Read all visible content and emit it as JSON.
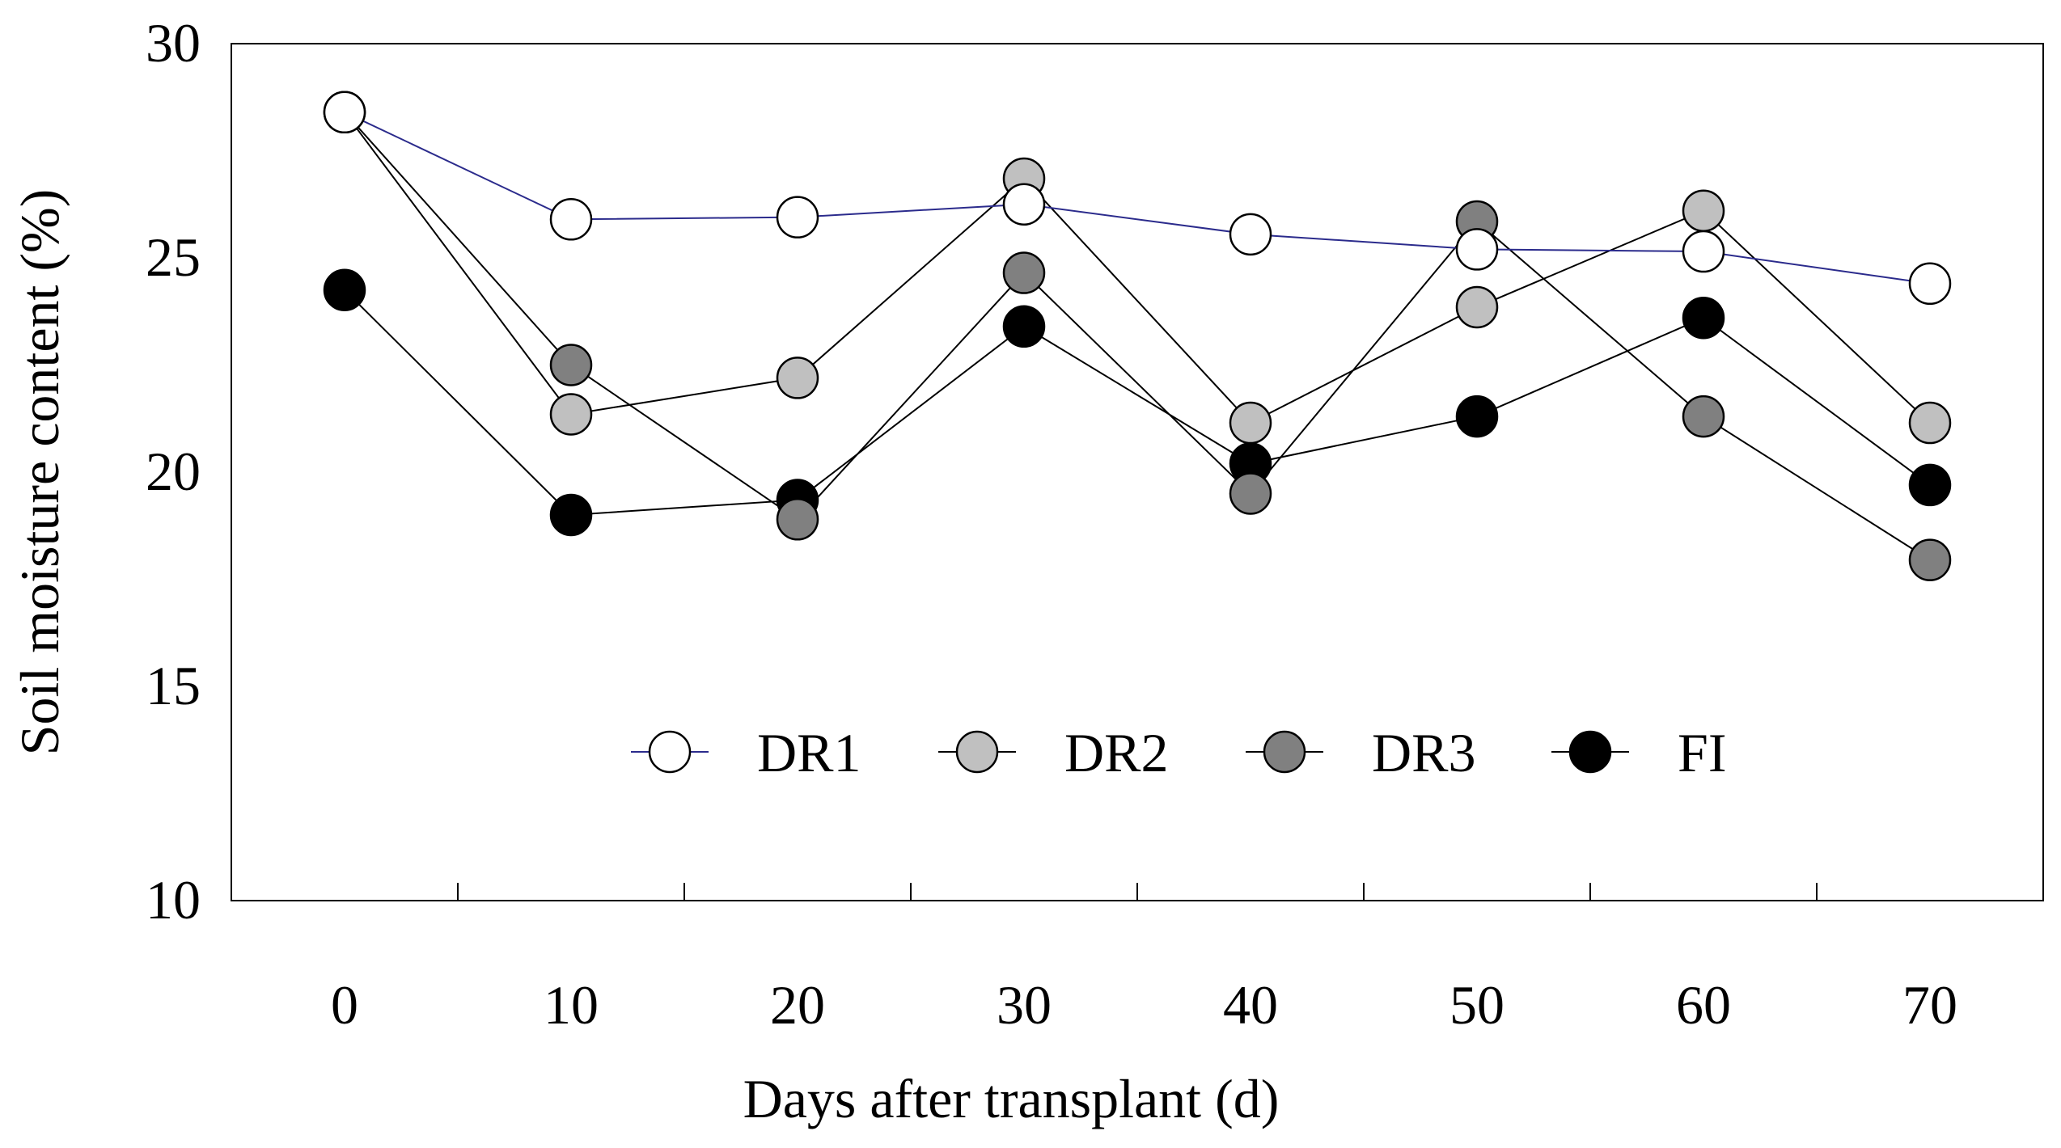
{
  "chart_data": {
    "type": "line",
    "title": "",
    "xlabel": "Days after transplant (d)",
    "ylabel": "Soil moisture content (%)",
    "x": [
      0,
      10,
      20,
      30,
      40,
      50,
      60,
      70
    ],
    "x_tick_labels": [
      "0",
      "10",
      "20",
      "30",
      "40",
      "50",
      "60",
      "70"
    ],
    "ylim": [
      10,
      30
    ],
    "y_ticks": [
      10,
      15,
      20,
      25,
      30
    ],
    "y_tick_labels": [
      "10",
      "15",
      "20",
      "25",
      "30"
    ],
    "grid": false,
    "legend_position": "lower-center",
    "series": [
      {
        "name": "DR1",
        "values": [
          28.4,
          25.9,
          25.95,
          26.25,
          25.55,
          25.2,
          25.15,
          24.4
        ],
        "marker_fill": "#ffffff",
        "line_color": "#2b2b8c"
      },
      {
        "name": "DR2",
        "values": [
          28.4,
          21.35,
          22.2,
          26.85,
          21.15,
          23.85,
          26.1,
          21.15
        ],
        "marker_fill": "#c0c0c0",
        "line_color": "#000000"
      },
      {
        "name": "DR3",
        "values": [
          28.4,
          22.5,
          18.9,
          24.65,
          19.5,
          25.85,
          21.3,
          17.95
        ],
        "marker_fill": "#808080",
        "line_color": "#000000"
      },
      {
        "name": "FI",
        "values": [
          24.25,
          19.0,
          19.35,
          23.4,
          20.2,
          21.3,
          23.6,
          19.7
        ],
        "marker_fill": "#000000",
        "line_color": "#000000"
      }
    ]
  }
}
